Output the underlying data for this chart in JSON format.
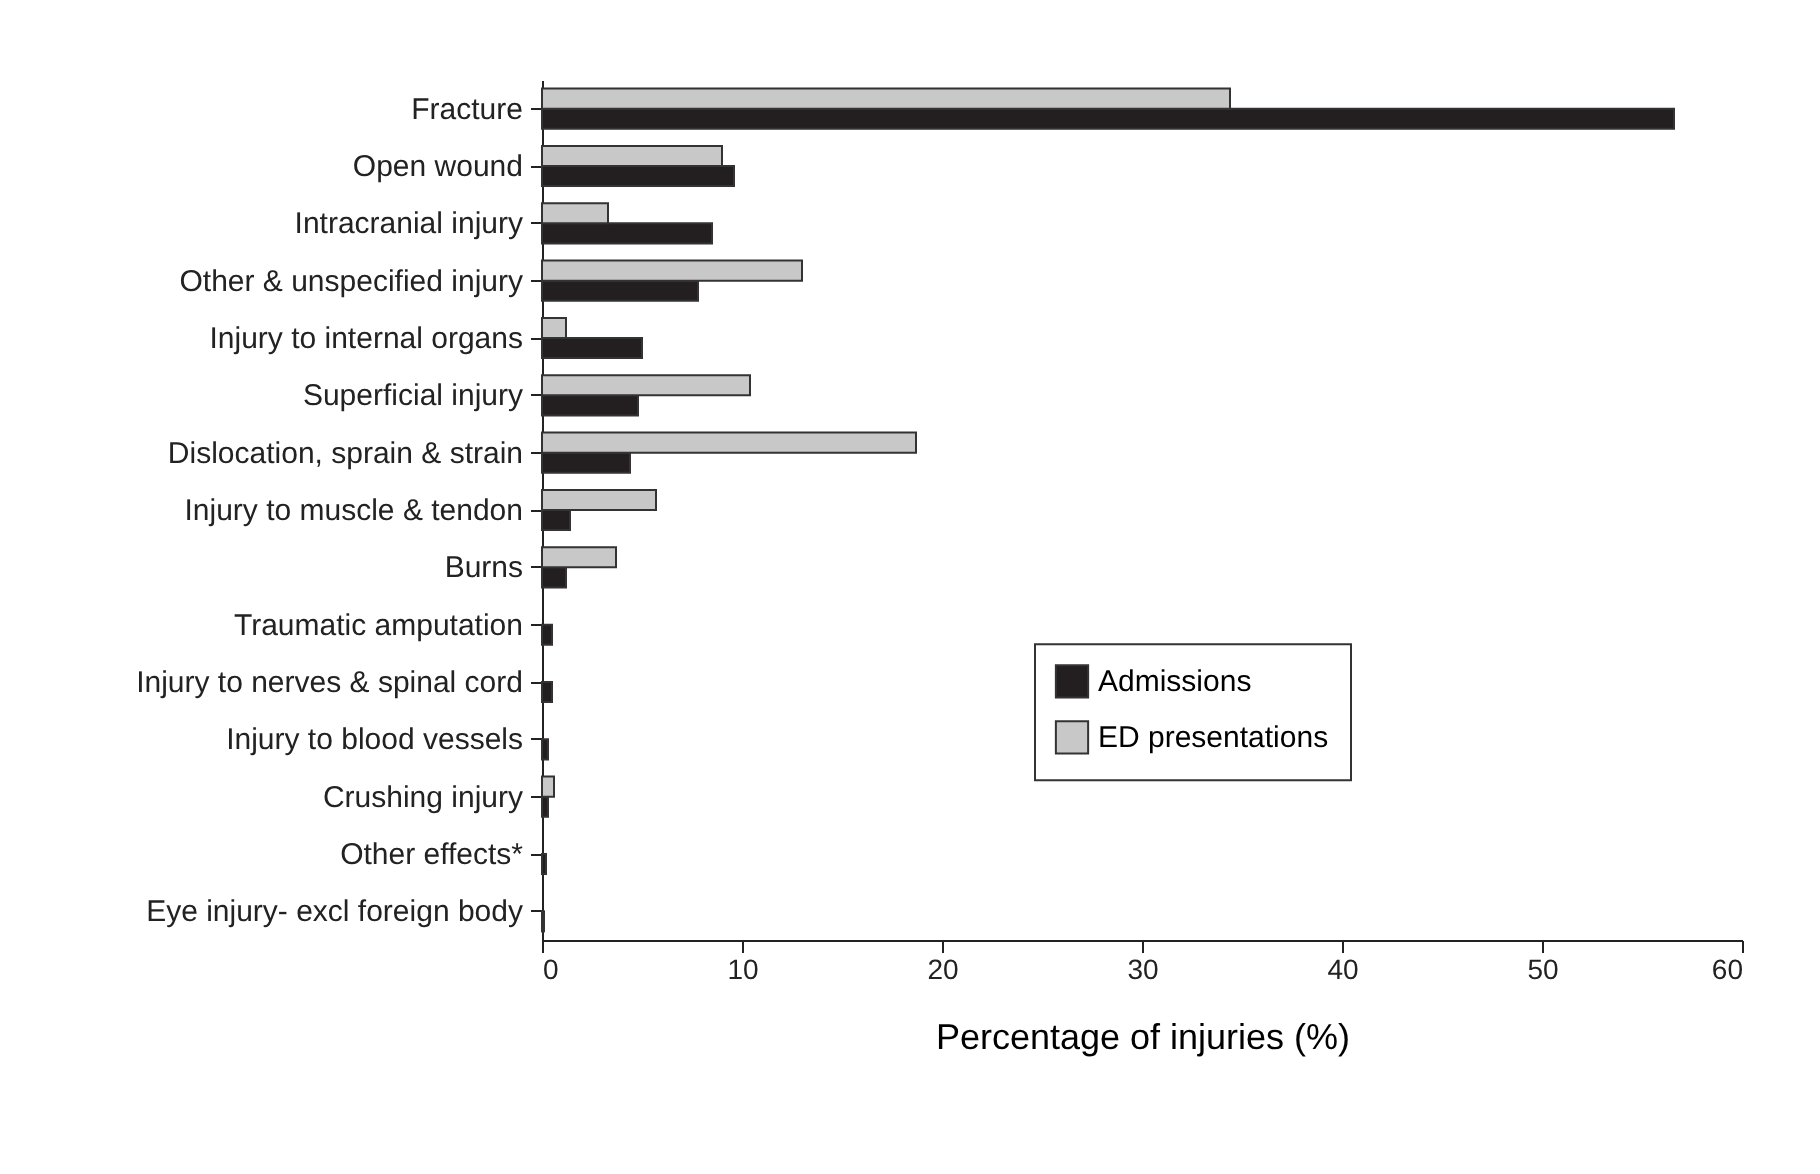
{
  "chart_data": {
    "type": "bar",
    "orientation": "horizontal",
    "xlabel": "Percentage of injuries (%)",
    "categories": [
      "Fracture",
      "Open wound",
      "Intracranial injury",
      "Other & unspecified injury",
      "Injury to internal organs",
      "Superficial injury",
      "Dislocation, sprain & strain",
      "Injury to muscle & tendon",
      "Burns",
      "Traumatic amputation",
      "Injury to nerves & spinal cord",
      "Injury to blood vessels",
      "Crushing injury",
      "Other effects*",
      "Eye injury- excl foreign body"
    ],
    "series": [
      {
        "name": "Admissions",
        "color": "#231f20",
        "values": [
          56.6,
          9.6,
          8.5,
          7.8,
          5.0,
          4.8,
          4.4,
          1.4,
          1.2,
          0.5,
          0.5,
          0.3,
          0.3,
          0.2,
          0.1
        ]
      },
      {
        "name": "ED presentations",
        "color": "#c8c8c8",
        "values": [
          34.4,
          9.0,
          3.3,
          13.0,
          1.2,
          10.4,
          18.7,
          5.7,
          3.7,
          null,
          null,
          null,
          0.6,
          null,
          null
        ]
      }
    ],
    "xlim": [
      0,
      60
    ],
    "xticks": [
      0,
      10,
      20,
      30,
      40,
      50,
      60
    ],
    "grid": false,
    "legend": "right"
  }
}
